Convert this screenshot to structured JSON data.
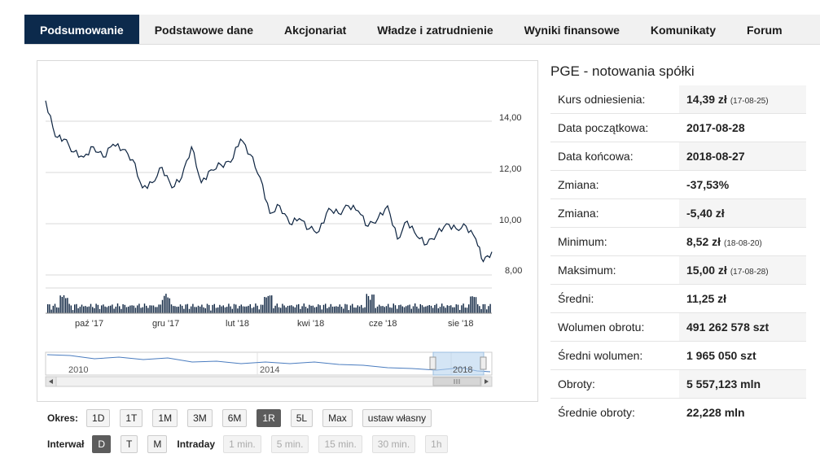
{
  "tabs": [
    {
      "label": "Podsumowanie",
      "active": true
    },
    {
      "label": "Podstawowe dane",
      "active": false
    },
    {
      "label": "Akcjonariat",
      "active": false
    },
    {
      "label": "Władze i zatrudnienie",
      "active": false
    },
    {
      "label": "Wyniki finansowe",
      "active": false
    },
    {
      "label": "Komunikaty",
      "active": false
    },
    {
      "label": "Forum",
      "active": false
    }
  ],
  "chart": {
    "y_ticks": [
      "14,00",
      "12,00",
      "10,00",
      "8,00"
    ],
    "x_ticks": [
      "paź '17",
      "gru '17",
      "lut '18",
      "kwi '18",
      "cze '18",
      "sie '18"
    ],
    "navigator_years": [
      "2010",
      "2014",
      "2018"
    ]
  },
  "chart_data": {
    "type": "line",
    "ylim": [
      8,
      15
    ],
    "x": [
      "2017-08-28",
      "2017-09-05",
      "2017-09-12",
      "2017-09-20",
      "2017-09-28",
      "2017-10-06",
      "2017-10-14",
      "2017-10-22",
      "2017-10-30",
      "2017-11-07",
      "2017-11-15",
      "2017-11-23",
      "2017-12-01",
      "2017-12-09",
      "2017-12-17",
      "2017-12-25",
      "2018-01-02",
      "2018-01-10",
      "2018-01-18",
      "2018-01-26",
      "2018-02-03",
      "2018-02-11",
      "2018-02-19",
      "2018-02-27",
      "2018-03-07",
      "2018-03-15",
      "2018-03-23",
      "2018-03-31",
      "2018-04-08",
      "2018-04-16",
      "2018-04-24",
      "2018-05-02",
      "2018-05-10",
      "2018-05-18",
      "2018-05-26",
      "2018-06-03",
      "2018-06-11",
      "2018-06-19",
      "2018-06-27",
      "2018-07-05",
      "2018-07-13",
      "2018-07-21",
      "2018-07-29",
      "2018-08-06",
      "2018-08-14",
      "2018-08-20",
      "2018-08-27"
    ],
    "y": [
      14.8,
      13.4,
      13.3,
      12.8,
      12.6,
      13.0,
      12.6,
      13.1,
      12.9,
      12.5,
      11.4,
      11.6,
      12.2,
      11.4,
      11.8,
      13.0,
      11.6,
      12.1,
      12.3,
      12.4,
      13.3,
      12.7,
      11.8,
      10.4,
      10.7,
      10.0,
      10.2,
      9.8,
      9.7,
      10.6,
      10.4,
      10.7,
      10.5,
      9.9,
      10.2,
      10.7,
      9.4,
      10.1,
      9.5,
      9.2,
      9.6,
      10.0,
      9.8,
      9.9,
      9.4,
      8.52,
      8.9
    ],
    "volume_note": "daily volume bars"
  },
  "controls": {
    "period_label": "Okres:",
    "period_buttons": [
      {
        "label": "1D",
        "active": false
      },
      {
        "label": "1T",
        "active": false
      },
      {
        "label": "1M",
        "active": false
      },
      {
        "label": "3M",
        "active": false
      },
      {
        "label": "6M",
        "active": false
      },
      {
        "label": "1R",
        "active": true
      },
      {
        "label": "5L",
        "active": false
      },
      {
        "label": "Max",
        "active": false
      },
      {
        "label": "ustaw własny",
        "active": false
      }
    ],
    "interval_label": "Interwał",
    "interval_buttons": [
      {
        "label": "D",
        "active": true
      },
      {
        "label": "T",
        "active": false
      },
      {
        "label": "M",
        "active": false
      }
    ],
    "intraday_label": "Intraday",
    "intraday_buttons": [
      "1 min.",
      "5 min.",
      "15 min.",
      "30 min.",
      "1h"
    ]
  },
  "info": {
    "title": "PGE - notowania spółki",
    "rows": [
      {
        "label": "Kurs odniesienia:",
        "value": "14,39 zł",
        "note": "(17-08-25)"
      },
      {
        "label": "Data początkowa:",
        "value": "2017-08-28",
        "note": ""
      },
      {
        "label": "Data końcowa:",
        "value": "2018-08-27",
        "note": ""
      },
      {
        "label": "Zmiana:",
        "value": "-37,53%",
        "note": ""
      },
      {
        "label": "Zmiana:",
        "value": "-5,40 zł",
        "note": ""
      },
      {
        "label": "Minimum:",
        "value": "8,52 zł",
        "note": "(18-08-20)"
      },
      {
        "label": "Maksimum:",
        "value": "15,00 zł",
        "note": "(17-08-28)"
      },
      {
        "label": "Średni:",
        "value": "11,25 zł",
        "note": ""
      },
      {
        "label": "Wolumen obrotu:",
        "value": "491 262 578 szt",
        "note": ""
      },
      {
        "label": "Średni wolumen:",
        "value": "1 965 050 szt",
        "note": ""
      },
      {
        "label": "Obroty:",
        "value": "5 557,123 mln",
        "note": ""
      },
      {
        "label": "Średnie obroty:",
        "value": "22,228 mln",
        "note": ""
      }
    ]
  }
}
